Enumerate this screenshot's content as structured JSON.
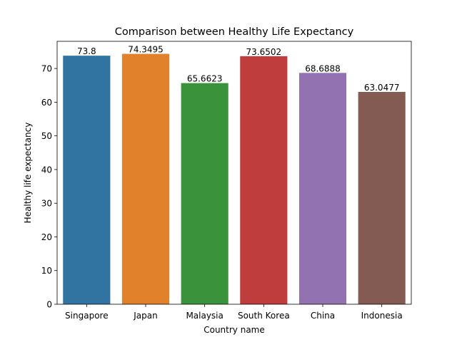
{
  "chart_data": {
    "type": "bar",
    "title": "Comparison between Healthy Life Expectancy",
    "xlabel": "Country name",
    "ylabel": "Healthy life expectancy",
    "categories": [
      "Singapore",
      "Japan",
      "Malaysia",
      "South Korea",
      "China",
      "Indonesia"
    ],
    "values": [
      73.8,
      74.3495,
      65.6623,
      73.6502,
      68.6888,
      63.0477
    ],
    "data_labels": [
      "73.8",
      "74.3495",
      "65.6623",
      "73.6502",
      "68.6888",
      "63.0477"
    ],
    "colors": [
      "#3274a1",
      "#e1812c",
      "#3a923a",
      "#c03d3e",
      "#9372b2",
      "#845b53"
    ],
    "ylim": [
      0,
      78.067
    ],
    "yticks": [
      0,
      10,
      20,
      30,
      40,
      50,
      60,
      70
    ],
    "grid": false,
    "legend": "none"
  }
}
